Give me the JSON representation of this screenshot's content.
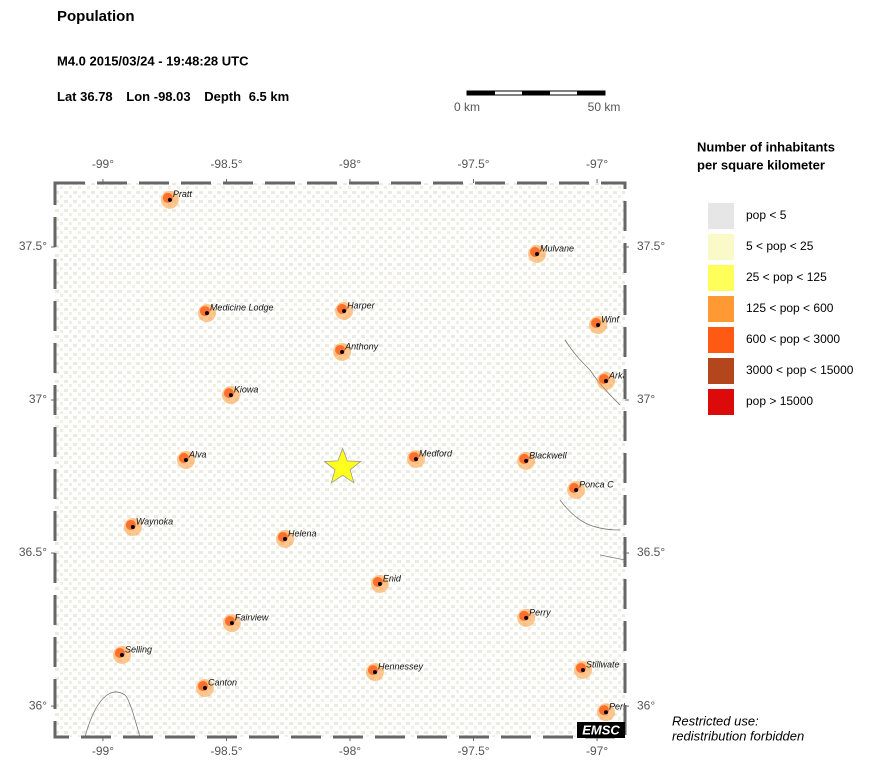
{
  "header": {
    "title": "Population",
    "event": "M4.0  2015/03/24 - 19:48:28 UTC",
    "lat": {
      "label": "Lat",
      "value": 36.78
    },
    "lon": {
      "label": "Lon",
      "value": -98.03
    },
    "depth": {
      "label": "Depth",
      "value": 6.5,
      "unit": "km"
    }
  },
  "scale_bar": {
    "start": "0 km",
    "end": "50 km"
  },
  "map": {
    "lonlim": [
      -99.194,
      -96.887
    ],
    "latlim": [
      35.899,
      37.709
    ],
    "lonticks": [
      {
        "value": -99,
        "label": "-99°"
      },
      {
        "value": -98.5,
        "label": "-98.5°"
      },
      {
        "value": -98,
        "label": "-98°"
      },
      {
        "value": -97.5,
        "label": "-97.5°"
      },
      {
        "value": -97,
        "label": "-97°"
      }
    ],
    "latticks": [
      {
        "value": 37.5,
        "label": "37.5°"
      },
      {
        "value": 37,
        "label": "37°"
      },
      {
        "value": 36.5,
        "label": "36.5°"
      },
      {
        "value": 36,
        "label": "36°"
      }
    ],
    "cities": [
      {
        "name": "Pratt",
        "lon": -98.729,
        "lat": 37.654
      },
      {
        "name": "Mulvane",
        "lon": -97.243,
        "lat": 37.477
      },
      {
        "name": "Medicine Lodge",
        "lon": -98.579,
        "lat": 37.284
      },
      {
        "name": "Harper",
        "lon": -98.024,
        "lat": 37.291
      },
      {
        "name": "Anthony",
        "lon": -98.032,
        "lat": 37.157
      },
      {
        "name": "Winf",
        "lon": -96.996,
        "lat": 37.245
      },
      {
        "name": "Arkans",
        "lon": -96.964,
        "lat": 37.062
      },
      {
        "name": "Kiowa",
        "lon": -98.482,
        "lat": 37.016
      },
      {
        "name": "Alva",
        "lon": -98.664,
        "lat": 36.804
      },
      {
        "name": "Medford",
        "lon": -97.733,
        "lat": 36.807
      },
      {
        "name": "Blackwell",
        "lon": -97.287,
        "lat": 36.801
      },
      {
        "name": "Ponca C",
        "lon": -97.085,
        "lat": 36.706
      },
      {
        "name": "Waynoka",
        "lon": -98.879,
        "lat": 36.585
      },
      {
        "name": "Helena",
        "lon": -98.263,
        "lat": 36.546
      },
      {
        "name": "Enid",
        "lon": -97.879,
        "lat": 36.399
      },
      {
        "name": "Fairview",
        "lon": -98.478,
        "lat": 36.271
      },
      {
        "name": "Perry",
        "lon": -97.287,
        "lat": 36.288
      },
      {
        "name": "Selling",
        "lon": -98.923,
        "lat": 36.167
      },
      {
        "name": "Stillwate",
        "lon": -97.057,
        "lat": 36.118
      },
      {
        "name": "Hennessey",
        "lon": -97.899,
        "lat": 36.111
      },
      {
        "name": "Canton",
        "lon": -98.587,
        "lat": 36.059
      },
      {
        "name": "Perkins",
        "lon": -96.964,
        "lat": 35.98
      }
    ]
  },
  "legend": {
    "title": [
      "Number of inhabitants",
      "per square kilometer"
    ],
    "items": [
      {
        "label": "pop < 5",
        "color": "#e6e6e6"
      },
      {
        "label": "5 < pop < 25",
        "color": "#fafac8"
      },
      {
        "label": "25 < pop < 125",
        "color": "#ffff5a"
      },
      {
        "label": "125 < pop < 600",
        "color": "#ff9933"
      },
      {
        "label": "600 < pop < 3000",
        "color": "#ff5a14"
      },
      {
        "label": "3000 < pop < 15000",
        "color": "#b4461e"
      },
      {
        "label": "pop > 15000",
        "color": "#dc0a0a"
      }
    ]
  },
  "footer": {
    "badge": "EMSC",
    "note": [
      "Restricted use:",
      "redistribution forbidden"
    ]
  }
}
